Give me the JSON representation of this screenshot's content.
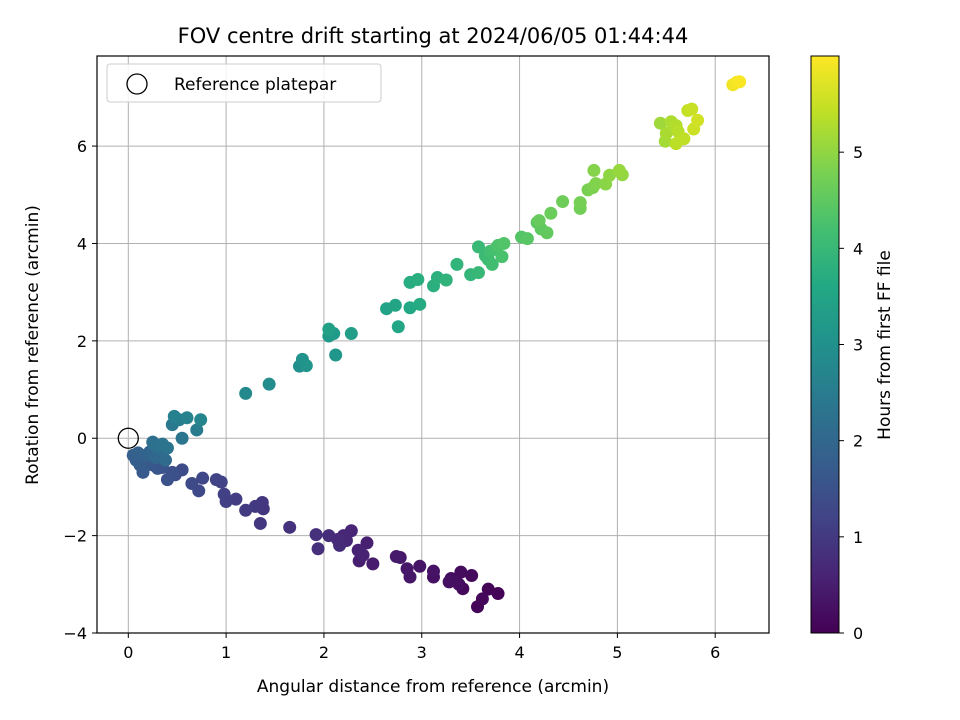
{
  "chart_data": {
    "type": "scatter",
    "title": "FOV centre drift starting at 2024/06/05 01:44:44",
    "xlabel": "Angular distance from reference (arcmin)",
    "ylabel": "Rotation from reference (arcmin)",
    "xlim": [
      -0.32,
      6.55
    ],
    "ylim": [
      -4.0,
      7.85
    ],
    "xticks": [
      0,
      1,
      2,
      3,
      4,
      5,
      6
    ],
    "yticks": [
      -4,
      -2,
      0,
      2,
      4,
      6
    ],
    "grid": true,
    "legend": {
      "placement": "top-left",
      "entries": [
        "Reference platepar"
      ]
    },
    "reference_point": {
      "x": 0,
      "y": 0
    },
    "colorbar": {
      "label": "Hours from first FF file",
      "range": [
        0,
        6.0
      ],
      "ticks": [
        0,
        1,
        2,
        3,
        4,
        5
      ],
      "colormap": "viridis"
    },
    "points": [
      [
        3.78,
        -3.19,
        0.03
      ],
      [
        3.57,
        -3.46,
        0.05
      ],
      [
        3.68,
        -3.1,
        0.08
      ],
      [
        3.62,
        -3.3,
        0.1
      ],
      [
        3.42,
        -3.09,
        0.13
      ],
      [
        3.51,
        -2.82,
        0.15
      ],
      [
        3.4,
        -2.75,
        0.18
      ],
      [
        3.3,
        -2.88,
        0.2
      ],
      [
        3.38,
        -3.0,
        0.23
      ],
      [
        3.28,
        -2.95,
        0.25
      ],
      [
        3.12,
        -2.85,
        0.28
      ],
      [
        3.12,
        -2.73,
        0.3
      ],
      [
        2.98,
        -2.63,
        0.33
      ],
      [
        2.88,
        -2.85,
        0.36
      ],
      [
        2.85,
        -2.68,
        0.38
      ],
      [
        2.78,
        -2.45,
        0.41
      ],
      [
        2.74,
        -2.43,
        0.44
      ],
      [
        2.5,
        -2.58,
        0.47
      ],
      [
        2.36,
        -2.52,
        0.5
      ],
      [
        2.44,
        -2.15,
        0.53
      ],
      [
        2.4,
        -2.4,
        0.56
      ],
      [
        2.35,
        -2.3,
        0.59
      ],
      [
        2.28,
        -1.9,
        0.62
      ],
      [
        2.23,
        -2.1,
        0.65
      ],
      [
        2.2,
        -2.0,
        0.68
      ],
      [
        2.14,
        -2.08,
        0.71
      ],
      [
        2.16,
        -2.2,
        0.74
      ],
      [
        2.05,
        -2.0,
        0.77
      ],
      [
        1.94,
        -2.27,
        0.8
      ],
      [
        1.92,
        -1.98,
        0.83
      ],
      [
        1.65,
        -1.83,
        0.86
      ],
      [
        1.38,
        -1.45,
        0.9
      ],
      [
        1.37,
        -1.32,
        0.93
      ],
      [
        1.35,
        -1.75,
        0.96
      ],
      [
        1.3,
        -1.4,
        1.0
      ],
      [
        1.2,
        -1.48,
        1.03
      ],
      [
        1.1,
        -1.25,
        1.06
      ],
      [
        1.0,
        -1.3,
        1.1
      ],
      [
        0.98,
        -1.15,
        1.14
      ],
      [
        0.95,
        -0.9,
        1.18
      ],
      [
        0.9,
        -0.85,
        1.22
      ],
      [
        0.76,
        -0.82,
        1.26
      ],
      [
        0.72,
        -1.08,
        1.3
      ],
      [
        0.65,
        -0.93,
        1.34
      ],
      [
        0.55,
        -0.65,
        1.38
      ],
      [
        0.48,
        -0.75,
        1.42
      ],
      [
        0.45,
        -0.7,
        1.46
      ],
      [
        0.4,
        -0.85,
        1.5
      ],
      [
        0.35,
        -0.6,
        1.54
      ],
      [
        0.3,
        -0.62,
        1.58
      ],
      [
        0.25,
        -0.55,
        1.62
      ],
      [
        0.2,
        -0.48,
        1.66
      ],
      [
        0.15,
        -0.7,
        1.7
      ],
      [
        0.12,
        -0.55,
        1.74
      ],
      [
        0.08,
        -0.45,
        1.78
      ],
      [
        0.05,
        -0.35,
        1.82
      ],
      [
        0.1,
        -0.3,
        1.86
      ],
      [
        0.18,
        -0.35,
        1.9
      ],
      [
        0.22,
        -0.28,
        1.94
      ],
      [
        0.28,
        -0.4,
        1.98
      ],
      [
        0.32,
        -0.35,
        2.02
      ],
      [
        0.38,
        -0.45,
        2.06
      ],
      [
        0.36,
        -0.25,
        2.1
      ],
      [
        0.3,
        -0.18,
        2.14
      ],
      [
        0.25,
        -0.08,
        2.18
      ],
      [
        0.28,
        -0.15,
        2.22
      ],
      [
        0.35,
        -0.12,
        2.26
      ],
      [
        0.4,
        -0.2,
        2.3
      ],
      [
        0.55,
        0.0,
        2.36
      ],
      [
        0.45,
        0.28,
        2.42
      ],
      [
        0.7,
        0.17,
        2.48
      ],
      [
        0.52,
        0.38,
        2.54
      ],
      [
        0.47,
        0.45,
        2.6
      ],
      [
        0.6,
        0.42,
        2.66
      ],
      [
        0.74,
        0.38,
        2.72
      ],
      [
        1.2,
        0.92,
        2.8
      ],
      [
        1.44,
        1.11,
        2.88
      ],
      [
        1.75,
        1.48,
        2.96
      ],
      [
        1.78,
        1.62,
        3.02
      ],
      [
        1.82,
        1.49,
        3.08
      ],
      [
        2.12,
        1.71,
        3.14
      ],
      [
        2.05,
        2.1,
        3.2
      ],
      [
        2.1,
        2.15,
        3.26
      ],
      [
        2.28,
        2.15,
        3.32
      ],
      [
        2.05,
        2.24,
        3.38
      ],
      [
        2.64,
        2.66,
        3.44
      ],
      [
        2.73,
        2.73,
        3.5
      ],
      [
        2.76,
        2.29,
        3.55
      ],
      [
        2.88,
        2.68,
        3.6
      ],
      [
        2.98,
        2.75,
        3.65
      ],
      [
        2.88,
        3.2,
        3.7
      ],
      [
        2.96,
        3.26,
        3.74
      ],
      [
        3.12,
        3.13,
        3.78
      ],
      [
        3.16,
        3.3,
        3.82
      ],
      [
        3.25,
        3.25,
        3.86
      ],
      [
        3.36,
        3.57,
        3.9
      ],
      [
        3.5,
        3.36,
        3.94
      ],
      [
        3.58,
        3.4,
        3.98
      ],
      [
        3.58,
        3.93,
        4.02
      ],
      [
        3.65,
        3.75,
        4.06
      ],
      [
        3.68,
        3.67,
        4.1
      ],
      [
        3.72,
        3.57,
        4.14
      ],
      [
        3.7,
        3.84,
        4.18
      ],
      [
        3.75,
        3.88,
        4.22
      ],
      [
        3.82,
        3.73,
        4.26
      ],
      [
        3.78,
        3.96,
        4.3
      ],
      [
        3.84,
        4.0,
        4.34
      ],
      [
        4.02,
        4.13,
        4.38
      ],
      [
        4.08,
        4.1,
        4.42
      ],
      [
        4.18,
        4.43,
        4.46
      ],
      [
        4.22,
        4.3,
        4.5
      ],
      [
        4.28,
        4.22,
        4.54
      ],
      [
        4.2,
        4.47,
        4.58
      ],
      [
        4.32,
        4.62,
        4.62
      ],
      [
        4.44,
        4.86,
        4.66
      ],
      [
        4.62,
        4.72,
        4.7
      ],
      [
        4.62,
        4.84,
        4.74
      ],
      [
        4.7,
        5.1,
        4.78
      ],
      [
        4.75,
        5.15,
        4.82
      ],
      [
        4.78,
        5.23,
        4.86
      ],
      [
        4.76,
        5.5,
        4.9
      ],
      [
        4.88,
        5.22,
        4.94
      ],
      [
        4.92,
        5.4,
        4.98
      ],
      [
        5.05,
        5.41,
        5.02
      ],
      [
        5.02,
        5.5,
        5.06
      ],
      [
        5.44,
        6.47,
        5.12
      ],
      [
        5.49,
        6.1,
        5.18
      ],
      [
        5.5,
        6.26,
        5.22
      ],
      [
        5.55,
        6.5,
        5.26
      ],
      [
        5.6,
        6.42,
        5.3
      ],
      [
        5.62,
        6.3,
        5.34
      ],
      [
        5.6,
        6.05,
        5.38
      ],
      [
        5.68,
        6.15,
        5.42
      ],
      [
        5.72,
        6.73,
        5.46
      ],
      [
        5.76,
        6.76,
        5.5
      ],
      [
        5.78,
        6.35,
        5.54
      ],
      [
        5.82,
        6.53,
        5.58
      ],
      [
        6.18,
        7.26,
        5.88
      ],
      [
        6.22,
        7.31,
        5.92
      ],
      [
        6.25,
        7.32,
        5.96
      ]
    ]
  }
}
